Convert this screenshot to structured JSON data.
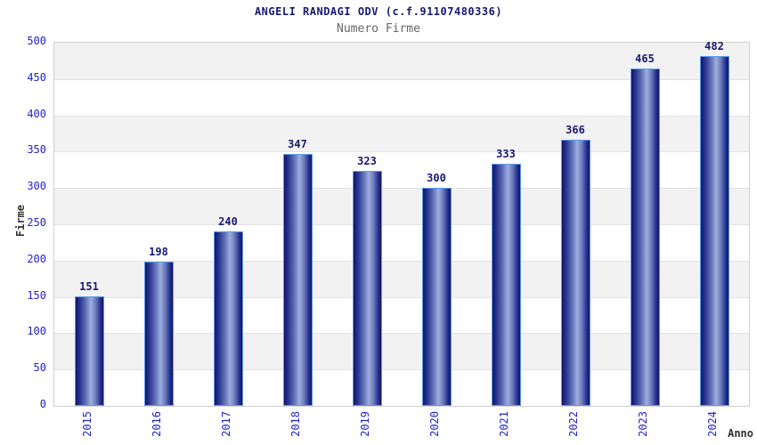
{
  "title": "ANGELI RANDAGI ODV (c.f.91107480336)",
  "subtitle": "Numero Firme",
  "chart_data": {
    "type": "bar",
    "title": "ANGELI RANDAGI ODV (c.f.91107480336)",
    "subtitle": "Numero Firme",
    "xlabel": "Anno",
    "ylabel": "Firme",
    "categories": [
      "2015",
      "2016",
      "2017",
      "2018",
      "2019",
      "2020",
      "2021",
      "2022",
      "2023",
      "2024"
    ],
    "values": [
      151,
      198,
      240,
      347,
      323,
      300,
      333,
      366,
      465,
      482
    ],
    "ylim": [
      0,
      500
    ],
    "yticks": [
      0,
      50,
      100,
      150,
      200,
      250,
      300,
      350,
      400,
      450,
      500
    ],
    "grid": "horizontal alternating bands",
    "legend": "none",
    "colors": {
      "bar_edge": "#12126e",
      "bar_highlight": "#9fadde",
      "bar_border": "#5b9ce8",
      "tick_label": "#2222cc",
      "value_label": "#191970",
      "title": "#191970",
      "subtitle": "#666666",
      "axis_title": "#333333",
      "band_gray": "#f2f2f2",
      "band_white": "#ffffff",
      "plot_border": "#d0d0d0"
    }
  }
}
